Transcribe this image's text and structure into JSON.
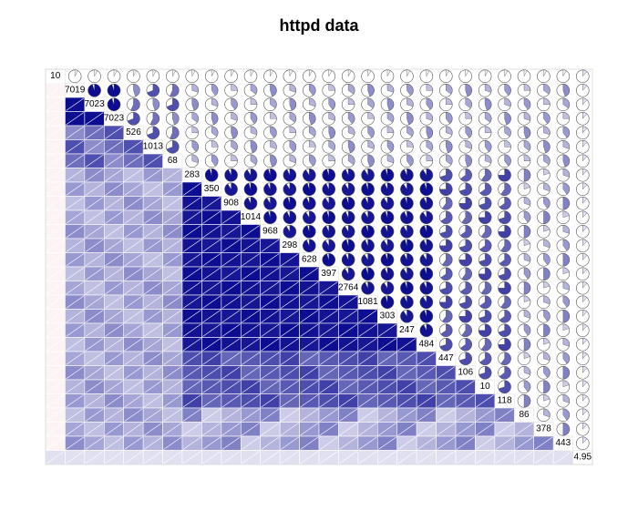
{
  "chart_data": {
    "type": "heatmap",
    "title": "httpd data",
    "n_vars": 28,
    "lower_panel": "shade",
    "upper_panel": "pie",
    "color_scale": {
      "negative": "#e8b4b4",
      "positive": "#00008b"
    },
    "diag_labels": [
      "10",
      "7019",
      "7023",
      "7023",
      "526",
      "1013",
      "68",
      "283",
      "350",
      "908",
      "1014",
      "968",
      "298",
      "628",
      "397",
      "2764",
      "1081",
      "303",
      "247",
      "484",
      "447",
      "106",
      "10",
      "118",
      "86",
      "378",
      "443",
      "4.95"
    ],
    "block": {
      "start": 7,
      "end": 19
    },
    "corr_rules": {
      "main_block": 0.95,
      "near_block": 0.75,
      "mid": 0.45,
      "edge": 0.2
    }
  }
}
